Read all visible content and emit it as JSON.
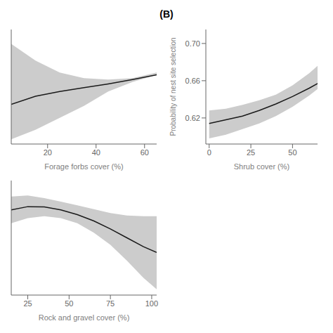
{
  "title": "(B)",
  "chart_data": [
    {
      "type": "line",
      "xlabel": "Forage forbs cover (%)",
      "x": [
        5,
        15,
        25,
        35,
        45,
        55,
        65
      ],
      "values": [
        0.593,
        0.61,
        0.62,
        0.628,
        0.636,
        0.645,
        0.655
      ],
      "color": "#1a1a1a",
      "ci_upper": [
        0.72,
        0.685,
        0.66,
        0.648,
        0.645,
        0.648,
        0.66
      ],
      "ci_lower": [
        0.52,
        0.54,
        0.565,
        0.59,
        0.62,
        0.64,
        0.655
      ],
      "ci_color": "#cccccc",
      "xlim": [
        5,
        65
      ],
      "xticks": [
        20,
        40,
        60
      ],
      "ylim": [
        0.51,
        0.75
      ],
      "tick_labels": "x"
    },
    {
      "type": "line",
      "xlabel": "Shrub cover (%)",
      "ylabel": "Probability of nest site selection",
      "x": [
        0,
        10,
        20,
        30,
        40,
        50,
        60,
        65
      ],
      "values": [
        0.614,
        0.618,
        0.622,
        0.628,
        0.635,
        0.643,
        0.652,
        0.657
      ],
      "color": "#1a1a1a",
      "ci_upper": [
        0.628,
        0.63,
        0.634,
        0.639,
        0.645,
        0.655,
        0.668,
        0.676
      ],
      "ci_lower": [
        0.598,
        0.602,
        0.608,
        0.614,
        0.622,
        0.632,
        0.644,
        0.651
      ],
      "ci_color": "#cccccc",
      "xlim": [
        -2,
        65
      ],
      "xticks": [
        0,
        25,
        50
      ],
      "ylim": [
        0.592,
        0.715
      ],
      "yticks": [
        0.62,
        0.66,
        {
          "value": 0.7,
          "label": "0.70"
        }
      ]
    },
    {
      "type": "line",
      "xlabel": "Rock and gravel cover (%)",
      "x": [
        15,
        25,
        35,
        45,
        55,
        65,
        75,
        85,
        95,
        103
      ],
      "values": [
        0.748,
        0.758,
        0.757,
        0.748,
        0.733,
        0.713,
        0.688,
        0.66,
        0.632,
        0.614
      ],
      "color": "#1a1a1a",
      "ci_upper": [
        0.79,
        0.793,
        0.785,
        0.774,
        0.762,
        0.75,
        0.738,
        0.73,
        0.728,
        0.728
      ],
      "ci_lower": [
        0.706,
        0.722,
        0.728,
        0.722,
        0.706,
        0.676,
        0.638,
        0.588,
        0.534,
        0.498
      ],
      "ci_color": "#cccccc",
      "xlim": [
        15,
        103
      ],
      "xticks": [
        25,
        50,
        75,
        100
      ],
      "ylim": [
        0.48,
        0.84
      ],
      "tick_labels": "x"
    }
  ]
}
